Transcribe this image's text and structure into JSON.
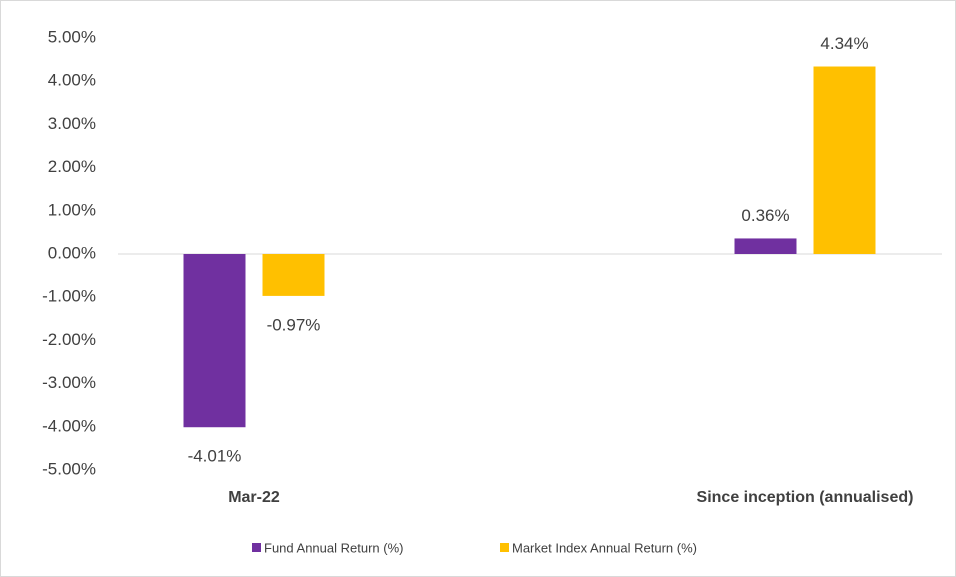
{
  "chart_data": {
    "type": "bar",
    "categories": [
      "Mar-22",
      "Since inception (annualised)"
    ],
    "series": [
      {
        "name": "Fund Annual Return (%)",
        "color": "#7030a0",
        "values": [
          -4.01,
          0.36
        ],
        "value_labels": [
          "-4.01%",
          "0.36%"
        ]
      },
      {
        "name": "Market Index Annual Return (%)",
        "color": "#ffc000",
        "values": [
          -0.97,
          4.34
        ],
        "value_labels": [
          "-0.97%",
          "4.34%"
        ]
      }
    ],
    "ylim": [
      -5,
      5
    ],
    "yticks": [
      {
        "value": 5,
        "label": "5.00%"
      },
      {
        "value": 4,
        "label": "4.00%"
      },
      {
        "value": 3,
        "label": "3.00%"
      },
      {
        "value": 2,
        "label": "2.00%"
      },
      {
        "value": 1,
        "label": "1.00%"
      },
      {
        "value": 0,
        "label": "0.00%"
      },
      {
        "value": -1,
        "label": "-1.00%"
      },
      {
        "value": -2,
        "label": "-2.00%"
      },
      {
        "value": -3,
        "label": "-3.00%"
      },
      {
        "value": -4,
        "label": "-4.00%"
      },
      {
        "value": -5,
        "label": "-5.00%"
      }
    ],
    "grid": false,
    "legend": "bottom"
  }
}
